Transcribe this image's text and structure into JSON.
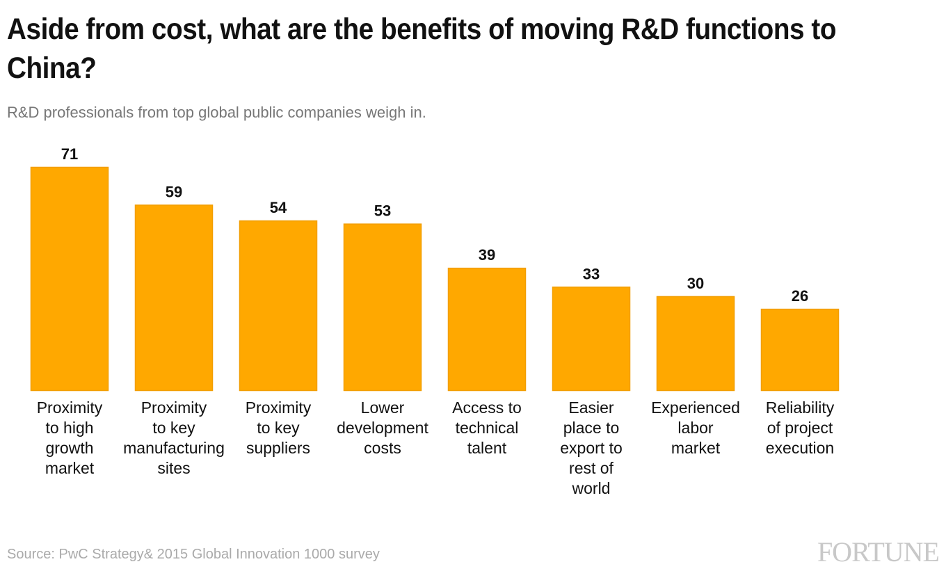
{
  "title": "Aside from cost, what are the benefits of moving R&D functions to China?",
  "subtitle": "R&D professionals from top global public companies weigh in.",
  "source": "Source: PwC Strategy& 2015 Global Innovation 1000 survey",
  "logo": "FORTUNE",
  "chart_data": {
    "type": "bar",
    "title": "Aside from cost, what are the benefits of moving R&D functions to China?",
    "subtitle": "R&D professionals from top global public companies weigh in.",
    "categories": [
      "Proximity to high growth market",
      "Proximity to key manufacturing sites",
      "Proximity to key suppliers",
      "Lower development costs",
      "Access to technical talent",
      "Easier place to export to rest of world",
      "Experienced labor market",
      "Reliability of project execution"
    ],
    "values": [
      71,
      59,
      54,
      53,
      39,
      33,
      30,
      26
    ],
    "ylim": [
      0,
      71
    ],
    "grid": false,
    "data_labels": true,
    "bar_color": "#FFA800",
    "bar_edge_color": "#F29E00"
  }
}
